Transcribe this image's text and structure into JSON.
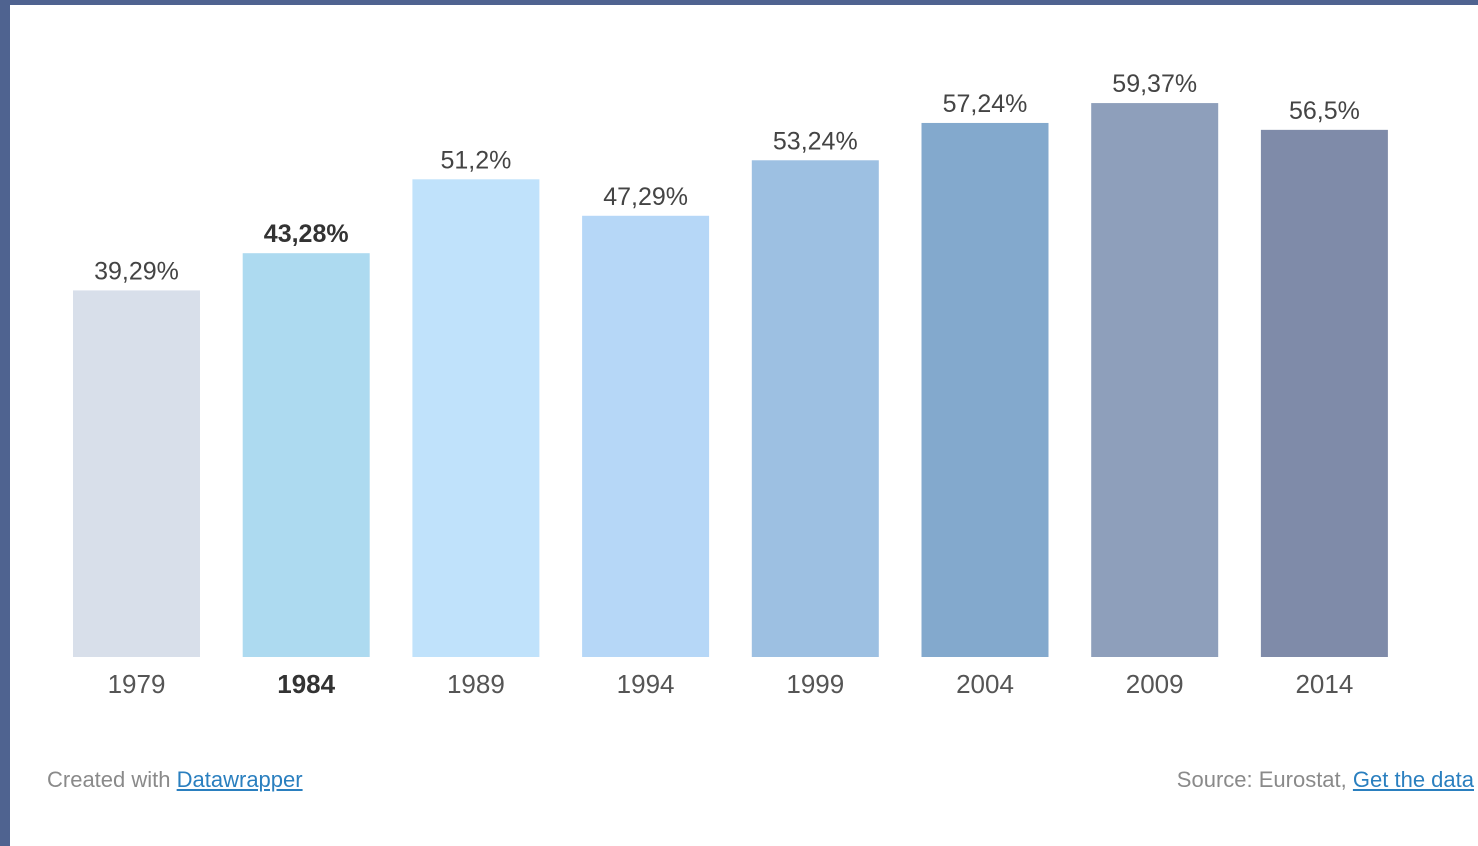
{
  "footer": {
    "created_prefix": "Created with",
    "created_link": "Datawrapper",
    "source_prefix": "Source: Eurostat,",
    "source_link": "Get the data"
  },
  "chart_data": {
    "type": "bar",
    "categories": [
      "1979",
      "1984",
      "1989",
      "1994",
      "1999",
      "2004",
      "2009",
      "2014"
    ],
    "values": [
      39.29,
      43.28,
      51.2,
      47.29,
      53.24,
      57.24,
      59.37,
      56.5
    ],
    "value_labels": [
      "39,29%",
      "43,28%",
      "51,2%",
      "47,29%",
      "53,24%",
      "57,24%",
      "59,37%",
      "56,5%"
    ],
    "colors": [
      "#d8dfea",
      "#addaf0",
      "#c0e2fb",
      "#b6d7f7",
      "#9dc0e2",
      "#83a9cd",
      "#8e9fbb",
      "#7f8ba9"
    ],
    "highlight_category": "1984",
    "ylim": [
      0,
      62.5
    ],
    "grid": false,
    "title": "",
    "xlabel": "",
    "ylabel": ""
  }
}
